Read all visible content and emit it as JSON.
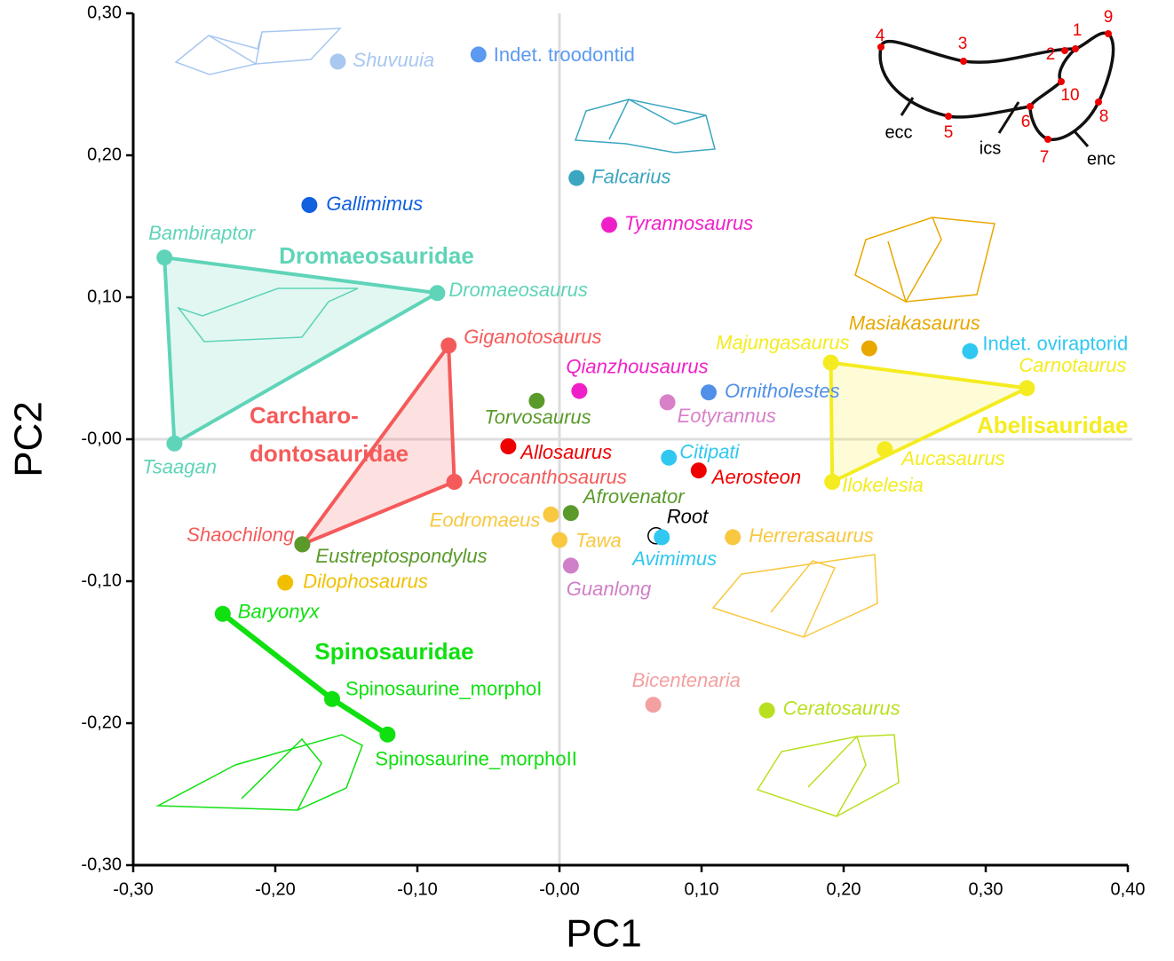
{
  "chart_data": {
    "type": "scatter",
    "xlabel": "PC1",
    "ylabel": "PC2",
    "xlim": [
      -0.3,
      0.4
    ],
    "ylim": [
      -0.3,
      0.3
    ],
    "xticks": [
      {
        "value": -0.3,
        "label": "-0,30"
      },
      {
        "value": -0.2,
        "label": "-0,20"
      },
      {
        "value": -0.1,
        "label": "-0,10"
      },
      {
        "value": 0,
        "label": "-0,00"
      },
      {
        "value": 0.1,
        "label": "0,10"
      },
      {
        "value": 0.2,
        "label": "0,20"
      },
      {
        "value": 0.3,
        "label": "0,30"
      },
      {
        "value": 0.4,
        "label": "0,40"
      }
    ],
    "yticks": [
      {
        "value": -0.3,
        "label": "-0,30"
      },
      {
        "value": -0.2,
        "label": "-0,20"
      },
      {
        "value": -0.1,
        "label": "-0,10"
      },
      {
        "value": 0,
        "label": "-0,00"
      },
      {
        "value": 0.1,
        "label": "0,10"
      },
      {
        "value": 0.2,
        "label": "0,20"
      },
      {
        "value": 0.3,
        "label": "0,30"
      }
    ],
    "zero_lines": true,
    "points": [
      {
        "name": "Shuvuuia",
        "color": "#a8c8f0",
        "x": -0.156,
        "y": 0.266
      },
      {
        "name": "Indet. troodontid",
        "color": "#5b9af0",
        "x": -0.057,
        "y": 0.271
      },
      {
        "name": "Falcarius",
        "color": "#3aa6c0",
        "x": 0.012,
        "y": 0.184
      },
      {
        "name": "Gallimimus",
        "color": "#1060e0",
        "x": -0.176,
        "y": 0.165
      },
      {
        "name": "Tyrannosaurus",
        "color": "#f020c8",
        "x": 0.035,
        "y": 0.151
      },
      {
        "name": "Bambiraptor",
        "color": "#5fd4b8",
        "x": -0.278,
        "y": 0.128
      },
      {
        "name": "Dromaeosaurus",
        "color": "#5fd4b8",
        "x": -0.086,
        "y": 0.103
      },
      {
        "name": "Tsaagan",
        "color": "#5fd4b8",
        "x": -0.271,
        "y": -0.003
      },
      {
        "name": "Giganotosaurus",
        "color": "#f55a5a",
        "x": -0.078,
        "y": 0.066
      },
      {
        "name": "Acrocanthosaurus",
        "color": "#f55a5a",
        "x": -0.074,
        "y": -0.03
      },
      {
        "name": "Shaochilong",
        "color": "#f55a5a",
        "x": -0.181,
        "y": -0.074
      },
      {
        "name": "Eustreptospondylus",
        "color": "#5a9a2a",
        "x": -0.181,
        "y": -0.074
      },
      {
        "name": "Qianzhousaurus",
        "color": "#f020c8",
        "x": 0.014,
        "y": 0.034
      },
      {
        "name": "Torvosaurus",
        "color": "#5a9a2a",
        "x": -0.016,
        "y": 0.027
      },
      {
        "name": "Eotyrannus",
        "color": "#d880c8",
        "x": 0.076,
        "y": 0.026
      },
      {
        "name": "Ornitholestes",
        "color": "#5090e8",
        "x": 0.105,
        "y": 0.033
      },
      {
        "name": "Allosaurus",
        "color": "#ee0000",
        "x": -0.036,
        "y": -0.005
      },
      {
        "name": "Citipati",
        "color": "#30c8f0",
        "x": 0.077,
        "y": -0.013
      },
      {
        "name": "Aerosteon",
        "color": "#ee0000",
        "x": 0.098,
        "y": -0.022
      },
      {
        "name": "Masiakasaurus",
        "color": "#e8a800",
        "x": 0.218,
        "y": 0.064
      },
      {
        "name": "Indet. oviraptorid",
        "color": "#30c8f0",
        "x": 0.289,
        "y": 0.062
      },
      {
        "name": "Majungasaurus",
        "color": "#f4ec20",
        "x": 0.191,
        "y": 0.054
      },
      {
        "name": "Carnotaurus",
        "color": "#f4ec20",
        "x": 0.329,
        "y": 0.036
      },
      {
        "name": "Aucasaurus",
        "color": "#f4ec20",
        "x": 0.229,
        "y": -0.007
      },
      {
        "name": "Ilokelesia",
        "color": "#f4ec20",
        "x": 0.192,
        "y": -0.03
      },
      {
        "name": "Afrovenator",
        "color": "#5a9a2a",
        "x": 0.008,
        "y": -0.052
      },
      {
        "name": "Eodromaeus",
        "color": "#f8c840",
        "x": -0.006,
        "y": -0.053
      },
      {
        "name": "Tawa",
        "color": "#f8c840",
        "x": 0.0,
        "y": -0.071
      },
      {
        "name": "Root",
        "color": "#000000",
        "x": 0.068,
        "y": -0.068,
        "hollow": true
      },
      {
        "name": "Avimimus",
        "color": "#30c8f0",
        "x": 0.072,
        "y": -0.069
      },
      {
        "name": "Herrerasaurus",
        "color": "#f8c840",
        "x": 0.122,
        "y": -0.069
      },
      {
        "name": "Guanlong",
        "color": "#d080c8",
        "x": 0.008,
        "y": -0.089
      },
      {
        "name": "Dilophosaurus",
        "color": "#f0c000",
        "x": -0.193,
        "y": -0.101
      },
      {
        "name": "Baryonyx",
        "color": "#10e010",
        "x": -0.237,
        "y": -0.123
      },
      {
        "name": "Spinosaurine_morphoI",
        "color": "#10e010",
        "x": -0.16,
        "y": -0.183
      },
      {
        "name": "Spinosaurine_morphoII",
        "color": "#10e010",
        "x": -0.121,
        "y": -0.208
      },
      {
        "name": "Bicentenaria",
        "color": "#f4a0a0",
        "x": 0.066,
        "y": -0.187
      },
      {
        "name": "Ceratosaurus",
        "color": "#b8e020",
        "x": 0.146,
        "y": -0.191
      }
    ],
    "groups": [
      {
        "name": [
          "Dromaeosauridae"
        ],
        "color": "#5fd4b8"
      },
      {
        "name": [
          "Carcharo-",
          "dontosauridae"
        ],
        "color": "#f55a5a"
      },
      {
        "name": [
          "Abelisauridae"
        ],
        "color": "#f4ec20"
      },
      {
        "name": [
          "Spinosauridae"
        ],
        "color": "#10e010"
      }
    ],
    "landmark_diagram": {
      "landmarks": [
        "1",
        "2",
        "3",
        "4",
        "5",
        "6",
        "7",
        "8",
        "9",
        "10"
      ],
      "regions": [
        "ecc",
        "ics",
        "enc"
      ]
    }
  }
}
